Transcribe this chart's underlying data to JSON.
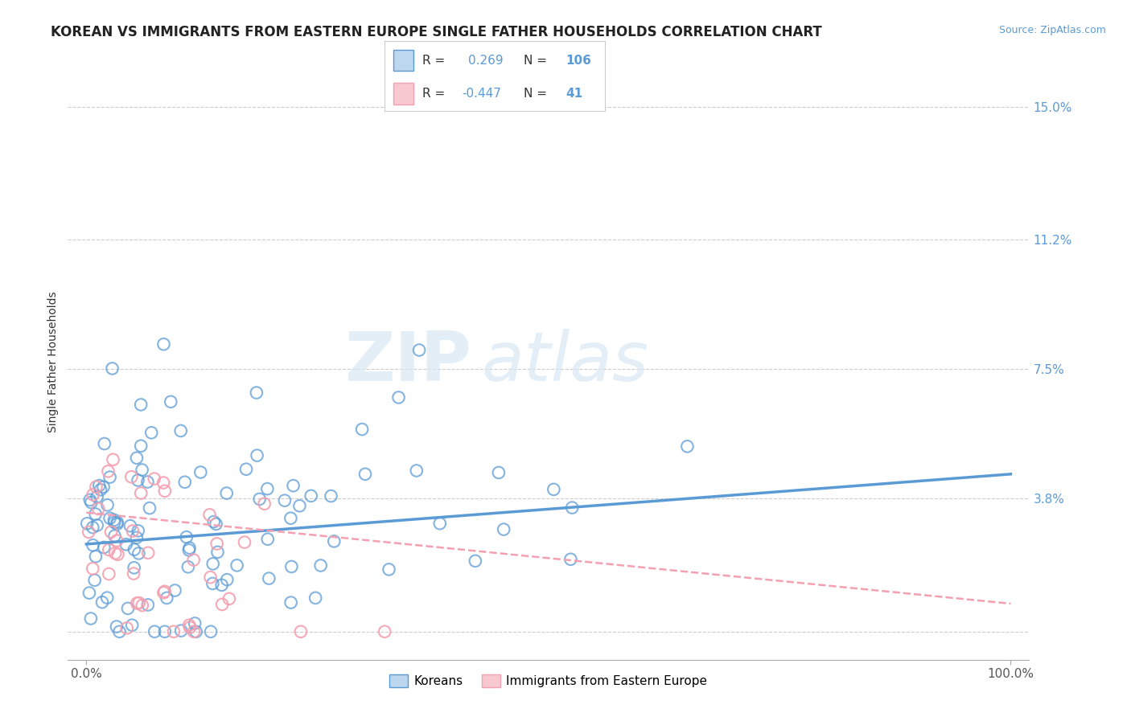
{
  "title": "KOREAN VS IMMIGRANTS FROM EASTERN EUROPE SINGLE FATHER HOUSEHOLDS CORRELATION CHART",
  "source": "Source: ZipAtlas.com",
  "ylabel": "Single Father Households",
  "yticks": [
    0.0,
    0.038,
    0.075,
    0.112,
    0.15
  ],
  "ytick_labels": [
    "",
    "3.8%",
    "7.5%",
    "11.2%",
    "15.0%"
  ],
  "xlim": [
    -0.02,
    1.02
  ],
  "ylim": [
    -0.008,
    0.162
  ],
  "legend_label1": "Koreans",
  "legend_label2": "Immigrants from Eastern Europe",
  "r1": 0.269,
  "n1": 106,
  "r2": -0.447,
  "n2": 41,
  "color_blue": "#5B9BD5",
  "color_pink": "#F4A0B0",
  "color_blue_fill": "#BDD7EE",
  "color_pink_fill": "#F8C8D0",
  "watermark_zip": "ZIP",
  "watermark_atlas": "atlas",
  "background_color": "#FFFFFF",
  "grid_color": "#CCCCCC",
  "title_fontsize": 12,
  "axis_label_fontsize": 10,
  "tick_fontsize": 11,
  "seed": 42,
  "blue_line_start_x": 0.0,
  "blue_line_end_x": 1.0,
  "blue_line_start_y": 0.025,
  "blue_line_end_y": 0.045,
  "pink_line_start_x": 0.0,
  "pink_line_end_x": 1.0,
  "pink_line_start_y": 0.034,
  "pink_line_end_y": 0.008
}
